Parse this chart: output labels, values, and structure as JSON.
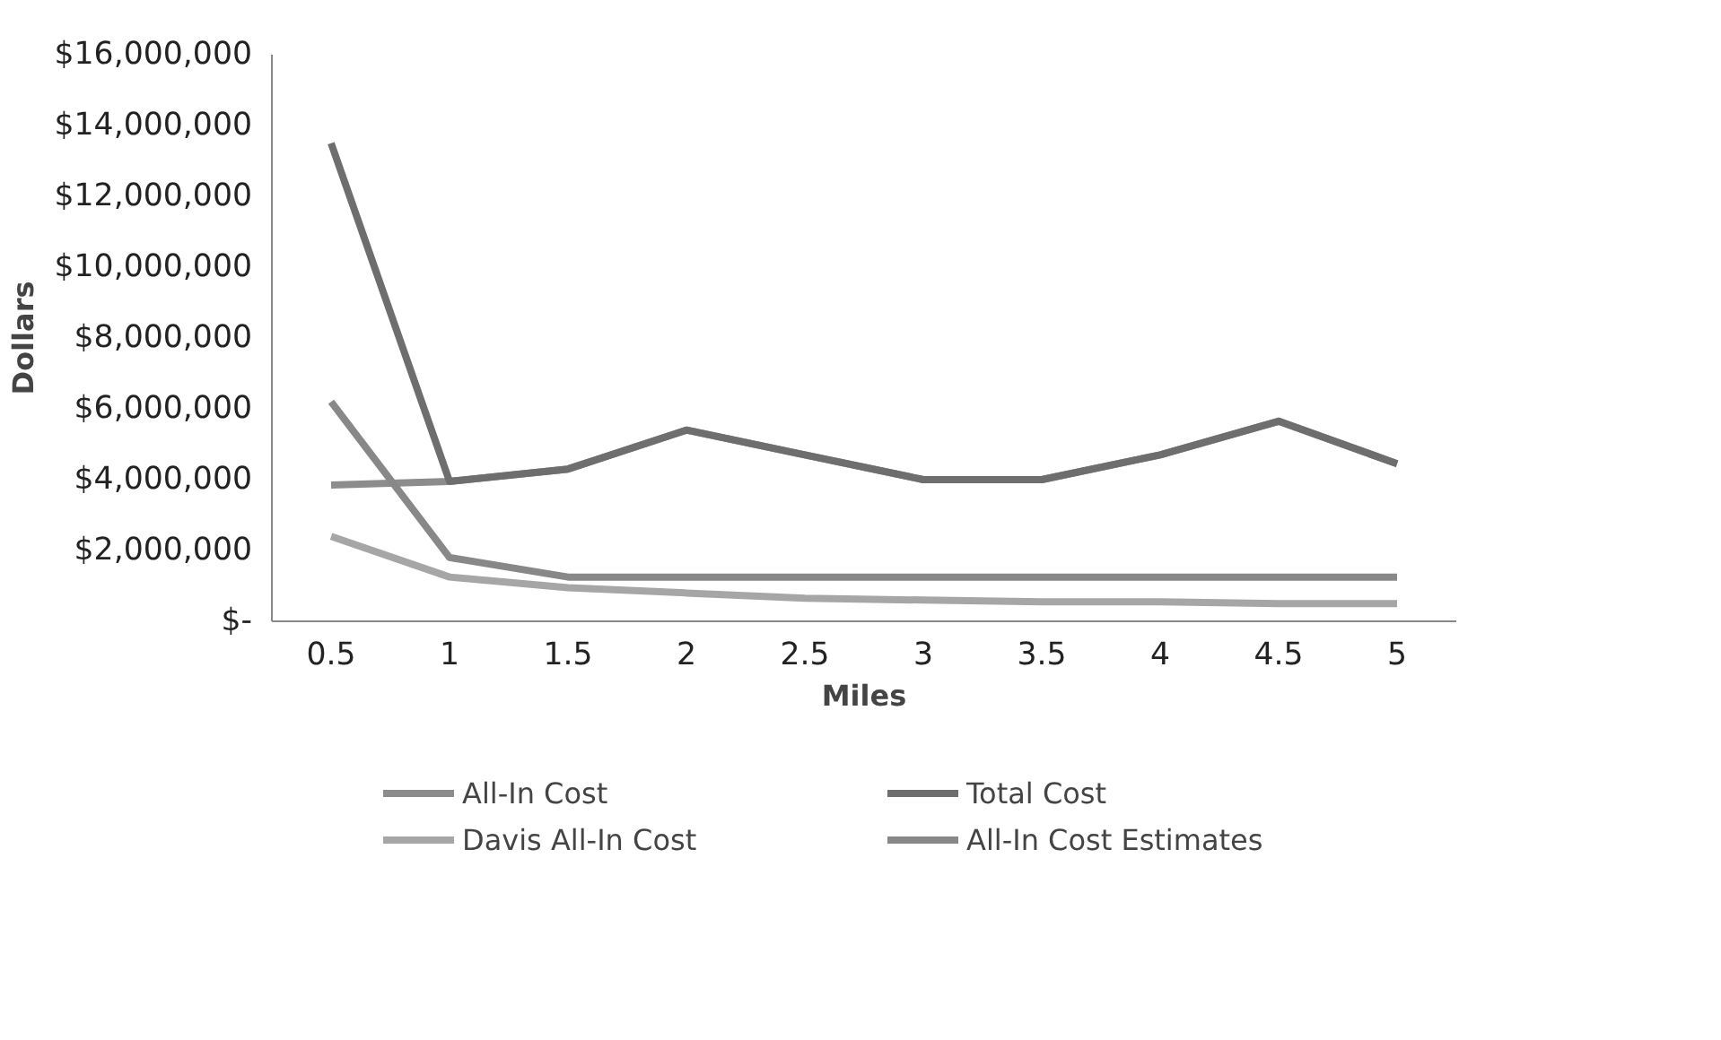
{
  "chart_data": {
    "type": "line",
    "xlabel": "Miles",
    "ylabel": "Dollars",
    "x": [
      0.5,
      1,
      1.5,
      2,
      2.5,
      3,
      3.5,
      4,
      4.5,
      5
    ],
    "xlim": [
      0.25,
      5.25
    ],
    "xticks": [
      0.5,
      1,
      1.5,
      2,
      2.5,
      3,
      3.5,
      4,
      4.5,
      5
    ],
    "ylim": [
      0,
      16000000
    ],
    "yticks": [
      {
        "value": 0,
        "label": "$-"
      },
      {
        "value": 2000000,
        "label": "$2,000,000"
      },
      {
        "value": 4000000,
        "label": "$4,000,000"
      },
      {
        "value": 6000000,
        "label": "$6,000,000"
      },
      {
        "value": 8000000,
        "label": "$8,000,000"
      },
      {
        "value": 10000000,
        "label": "$10,000,000"
      },
      {
        "value": 12000000,
        "label": "$12,000,000"
      },
      {
        "value": 14000000,
        "label": "$14,000,000"
      },
      {
        "value": 16000000,
        "label": "$16,000,000"
      }
    ],
    "grid": false,
    "legend": "bottom",
    "marker": "none",
    "line_style": "solid",
    "series": [
      {
        "name": "All-In Cost",
        "color": "#8c8c8c",
        "values": [
          3850000,
          3950000,
          4300000,
          5400000,
          4700000,
          4000000,
          4000000,
          4700000,
          5650000,
          4450000
        ]
      },
      {
        "name": "Total Cost",
        "color": "#6e6e6e",
        "values": [
          13500000,
          3950000,
          4300000,
          5400000,
          4700000,
          4000000,
          4000000,
          4700000,
          5650000,
          4450000
        ]
      },
      {
        "name": "Davis All-In Cost",
        "color": "#a6a6a6",
        "values": [
          2400000,
          1250000,
          950000,
          800000,
          650000,
          600000,
          550000,
          550000,
          500000,
          500000
        ]
      },
      {
        "name": "All-In Cost Estimates",
        "color": "#888888",
        "values": [
          6200000,
          1800000,
          1250000,
          1250000,
          1250000,
          1250000,
          1250000,
          1250000,
          1250000,
          1250000
        ]
      }
    ]
  }
}
